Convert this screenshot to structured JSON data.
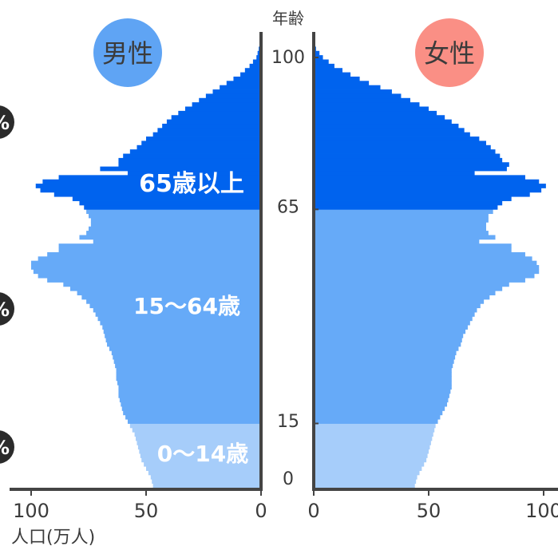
{
  "chart_data": {
    "type": "bar",
    "orientation": "horizontal",
    "xlabel": "人口(万人)",
    "age_axis_label": "年齢",
    "x_ticks_left": [
      "100",
      "50",
      "0"
    ],
    "x_ticks_right": [
      "0",
      "50",
      "100"
    ],
    "age_ticks": [
      "0",
      "15",
      "65",
      "100"
    ],
    "x_range": [
      0,
      100
    ],
    "age_range": [
      0,
      102
    ],
    "series_names": {
      "male": "男性",
      "female": "女性"
    },
    "bands": [
      {
        "label": "0〜14歳",
        "from_age": 0,
        "to_age": 14,
        "color": "#a6cdfa"
      },
      {
        "label": "15〜64歳",
        "from_age": 15,
        "to_age": 64,
        "color": "#66aaf8"
      },
      {
        "label": "65歳以上",
        "from_age": 65,
        "to_age": 102,
        "color": "#0063ee"
      }
    ],
    "left_edge_marks": [
      "%",
      "%",
      "%"
    ],
    "male_knots": [
      [
        0,
        47
      ],
      [
        2,
        48
      ],
      [
        4,
        50
      ],
      [
        6,
        52
      ],
      [
        8,
        53
      ],
      [
        10,
        54
      ],
      [
        12,
        55
      ],
      [
        14,
        57
      ],
      [
        15,
        58
      ],
      [
        17,
        60
      ],
      [
        19,
        61
      ],
      [
        21,
        62
      ],
      [
        23,
        62
      ],
      [
        25,
        63
      ],
      [
        27,
        63
      ],
      [
        29,
        64
      ],
      [
        31,
        65
      ],
      [
        33,
        67
      ],
      [
        35,
        68
      ],
      [
        37,
        69
      ],
      [
        39,
        71
      ],
      [
        41,
        73
      ],
      [
        43,
        76
      ],
      [
        45,
        80
      ],
      [
        47,
        86
      ],
      [
        48,
        93
      ],
      [
        49,
        97
      ],
      [
        50,
        99
      ],
      [
        51,
        100
      ],
      [
        52,
        100
      ],
      [
        53,
        97
      ],
      [
        54,
        93
      ],
      [
        55,
        88
      ],
      [
        56,
        88
      ],
      [
        57,
        86
      ],
      [
        58,
        79
      ],
      [
        59,
        76
      ],
      [
        60,
        75
      ],
      [
        61,
        74
      ],
      [
        62,
        74
      ],
      [
        63,
        75
      ],
      [
        64,
        76
      ],
      [
        65,
        77
      ],
      [
        66,
        79
      ],
      [
        67,
        82
      ],
      [
        68,
        90
      ],
      [
        69,
        96
      ],
      [
        70,
        98
      ],
      [
        71,
        95
      ],
      [
        72,
        88
      ],
      [
        73,
        72
      ],
      [
        74,
        70
      ],
      [
        75,
        62
      ],
      [
        76,
        62
      ],
      [
        77,
        60
      ],
      [
        78,
        57
      ],
      [
        79,
        54
      ],
      [
        80,
        52
      ],
      [
        81,
        50
      ],
      [
        82,
        47
      ],
      [
        84,
        43
      ],
      [
        86,
        39
      ],
      [
        88,
        33
      ],
      [
        90,
        27
      ],
      [
        92,
        21
      ],
      [
        94,
        15
      ],
      [
        96,
        9
      ],
      [
        98,
        5
      ],
      [
        100,
        2
      ],
      [
        102,
        1
      ]
    ],
    "female_knots": [
      [
        0,
        44
      ],
      [
        2,
        45
      ],
      [
        4,
        47
      ],
      [
        6,
        49
      ],
      [
        8,
        50
      ],
      [
        10,
        51
      ],
      [
        12,
        52
      ],
      [
        14,
        53
      ],
      [
        15,
        54
      ],
      [
        17,
        56
      ],
      [
        19,
        58
      ],
      [
        21,
        59
      ],
      [
        23,
        60
      ],
      [
        25,
        60
      ],
      [
        27,
        60
      ],
      [
        29,
        61
      ],
      [
        31,
        62
      ],
      [
        33,
        64
      ],
      [
        35,
        65
      ],
      [
        37,
        67
      ],
      [
        39,
        69
      ],
      [
        41,
        71
      ],
      [
        43,
        74
      ],
      [
        45,
        79
      ],
      [
        47,
        85
      ],
      [
        48,
        92
      ],
      [
        49,
        96
      ],
      [
        50,
        98
      ],
      [
        51,
        98
      ],
      [
        52,
        97
      ],
      [
        53,
        95
      ],
      [
        54,
        92
      ],
      [
        55,
        86
      ],
      [
        56,
        86
      ],
      [
        57,
        84
      ],
      [
        58,
        79
      ],
      [
        59,
        76
      ],
      [
        60,
        75
      ],
      [
        61,
        75
      ],
      [
        62,
        76
      ],
      [
        63,
        76
      ],
      [
        64,
        78
      ],
      [
        65,
        80
      ],
      [
        66,
        82
      ],
      [
        67,
        86
      ],
      [
        68,
        94
      ],
      [
        69,
        99
      ],
      [
        70,
        101
      ],
      [
        71,
        98
      ],
      [
        72,
        92
      ],
      [
        73,
        84
      ],
      [
        74,
        84
      ],
      [
        75,
        85
      ],
      [
        76,
        82
      ],
      [
        77,
        81
      ],
      [
        78,
        79
      ],
      [
        79,
        77
      ],
      [
        80,
        75
      ],
      [
        81,
        72
      ],
      [
        82,
        68
      ],
      [
        84,
        63
      ],
      [
        86,
        57
      ],
      [
        88,
        50
      ],
      [
        90,
        42
      ],
      [
        92,
        34
      ],
      [
        94,
        24
      ],
      [
        96,
        16
      ],
      [
        98,
        9
      ],
      [
        100,
        4
      ],
      [
        102,
        1
      ]
    ],
    "male_dips": [
      [
        57,
        73
      ],
      [
        73,
        58
      ]
    ],
    "female_dips": [
      [
        57,
        72
      ],
      [
        73,
        70
      ]
    ]
  }
}
